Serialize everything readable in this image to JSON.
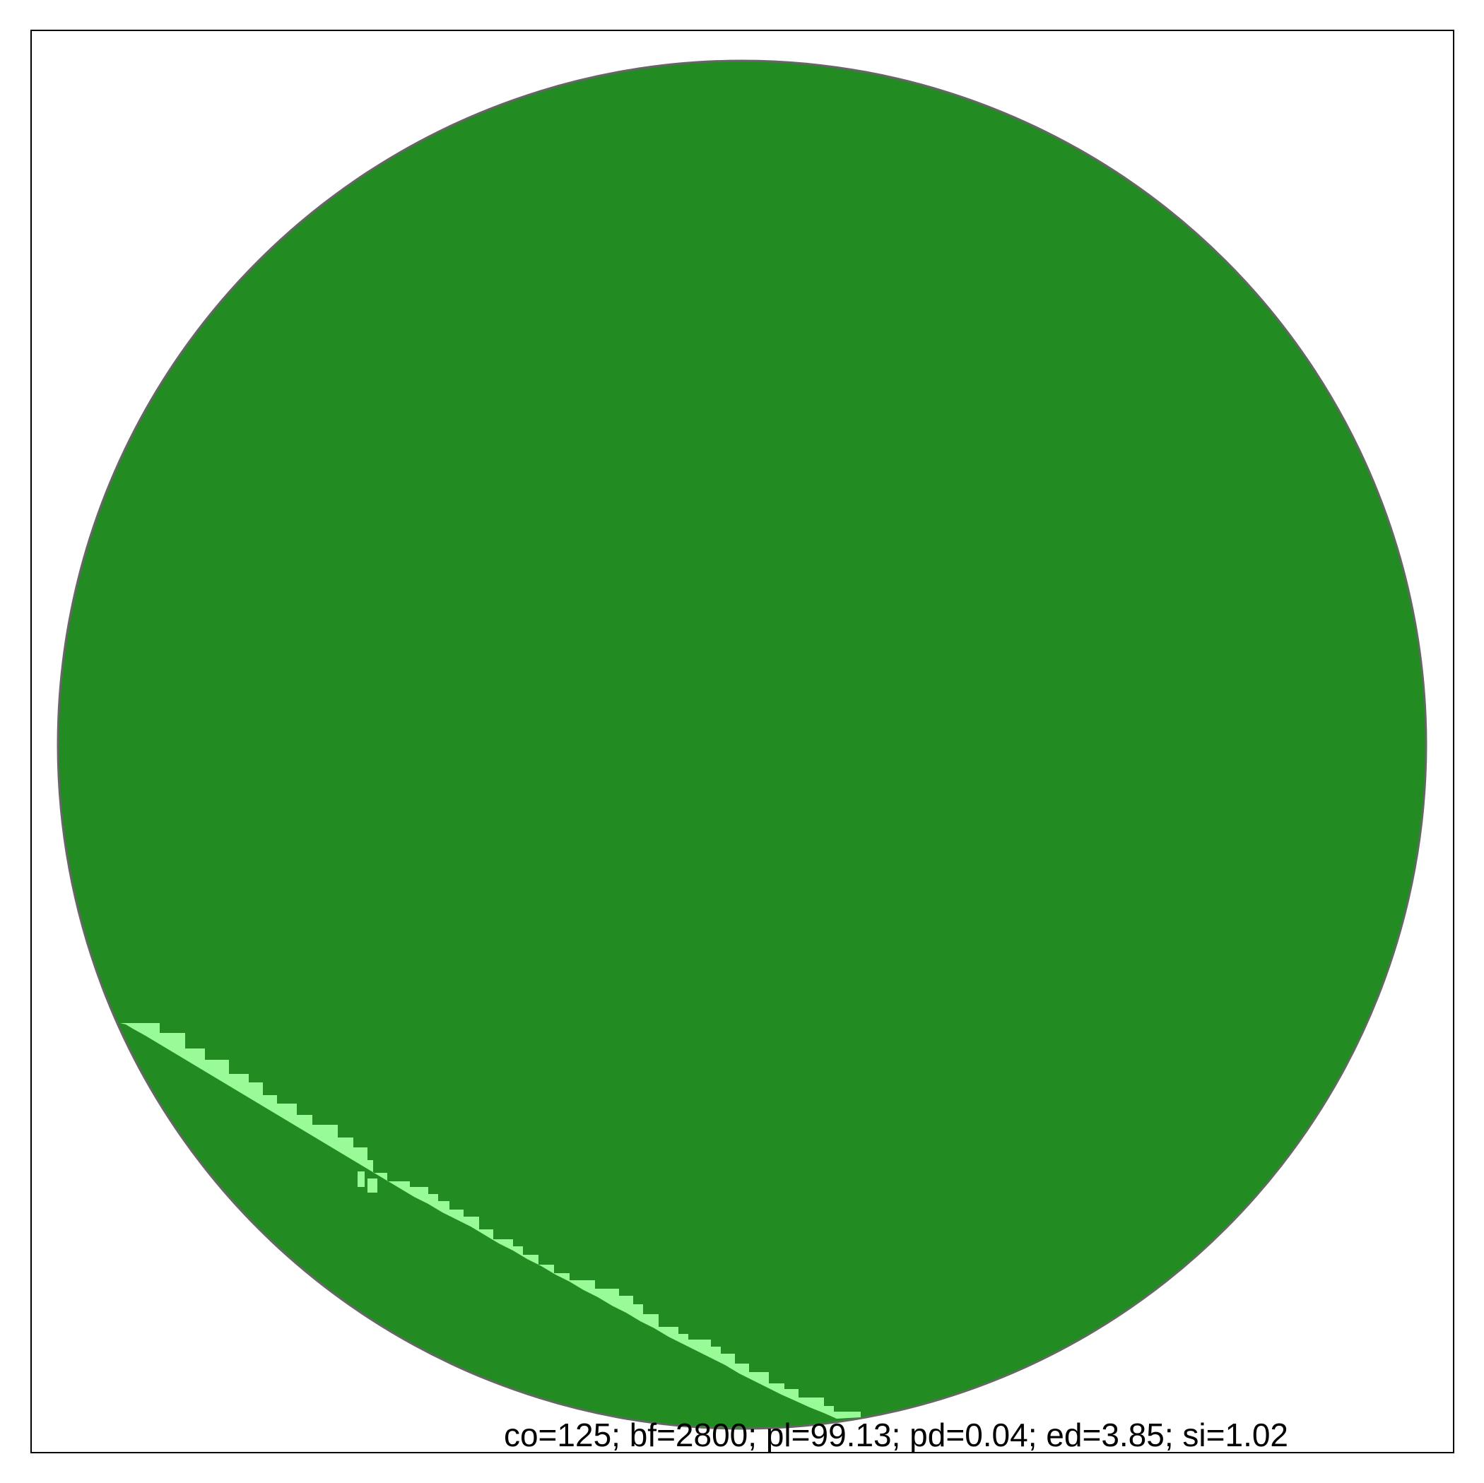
{
  "colors": {
    "background": "#ffffff",
    "frame": "#000000",
    "circle_outline": "#666666",
    "disc_fill": "#228b22",
    "streak_fill": "#98fb98",
    "caption_text": "#000000"
  },
  "caption": "co=125; bf=2800; pl=99.13; pd=0.04; ed=3.85; si=1.02"
}
